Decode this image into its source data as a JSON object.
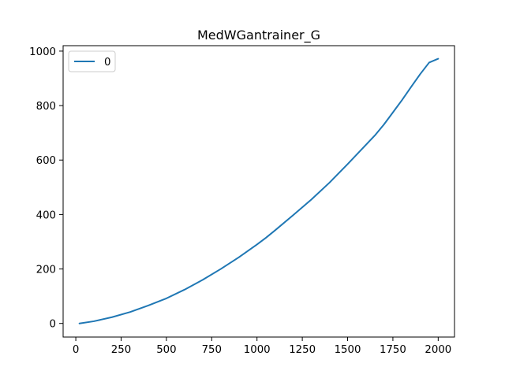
{
  "chart_data": {
    "type": "line",
    "title": "MedWGantrainer_G",
    "xlabel": "",
    "ylabel": "",
    "xlim": [
      -70,
      2090
    ],
    "ylim": [
      -50,
      1020
    ],
    "x_ticks": [
      0,
      250,
      500,
      750,
      1000,
      1250,
      1500,
      1750,
      2000
    ],
    "y_ticks": [
      0,
      200,
      400,
      600,
      800,
      1000
    ],
    "x_tick_labels": [
      "0",
      "250",
      "500",
      "750",
      "1000",
      "1250",
      "1500",
      "1750",
      "2000"
    ],
    "y_tick_labels": [
      "0",
      "200",
      "400",
      "600",
      "800",
      "1000"
    ],
    "grid": false,
    "legend": {
      "placement": "top-left",
      "entries": [
        "0"
      ]
    },
    "series": [
      {
        "name": "0",
        "color": "#1f77b4",
        "x": [
          20,
          100,
          200,
          300,
          400,
          500,
          600,
          700,
          800,
          900,
          1000,
          1050,
          1100,
          1200,
          1300,
          1400,
          1500,
          1600,
          1650,
          1700,
          1750,
          1800,
          1850,
          1900,
          1950,
          2000
        ],
        "y": [
          0,
          8,
          23,
          42,
          66,
          92,
          124,
          160,
          200,
          243,
          290,
          315,
          342,
          398,
          455,
          517,
          585,
          655,
          690,
          730,
          775,
          820,
          868,
          915,
          958,
          972
        ]
      }
    ]
  }
}
